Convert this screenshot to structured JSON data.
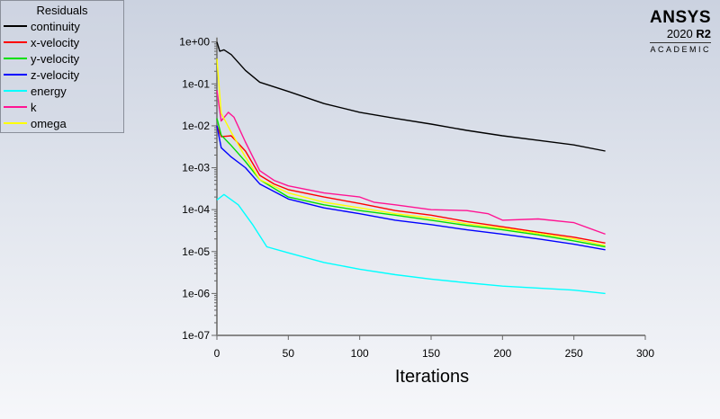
{
  "chart_data": {
    "type": "line",
    "title": "",
    "legend_title": "Residuals",
    "legend_placement": "top-left",
    "xlabel": "Iterations",
    "ylabel": "",
    "xlim": [
      0,
      300
    ],
    "ylim": [
      1e-07,
      1
    ],
    "yscale": "log",
    "xticks": [
      "0",
      "50",
      "100",
      "150",
      "200",
      "250",
      "300"
    ],
    "yticks": [
      "1e+00",
      "1e-01",
      "1e-02",
      "1e-03",
      "1e-04",
      "1e-05",
      "1e-06",
      "1e-07"
    ],
    "grid": false,
    "series": [
      {
        "name": "continuity",
        "color": "#000000",
        "x": [
          0,
          2,
          5,
          10,
          20,
          30,
          50,
          75,
          100,
          125,
          150,
          175,
          200,
          225,
          250,
          272
        ],
        "y": [
          1,
          0.6,
          0.65,
          0.5,
          0.21,
          0.11,
          0.066,
          0.034,
          0.021,
          0.015,
          0.011,
          0.0078,
          0.0058,
          0.0045,
          0.0035,
          0.0025
        ]
      },
      {
        "name": "x-velocity",
        "color": "#ff0000",
        "x": [
          0,
          3,
          10,
          20,
          30,
          40,
          50,
          75,
          100,
          125,
          150,
          175,
          200,
          225,
          250,
          272
        ],
        "y": [
          0.01,
          0.0055,
          0.0058,
          0.0025,
          0.00066,
          0.00041,
          0.0003,
          0.0002,
          0.00014,
          9.5e-05,
          7.4e-05,
          5.2e-05,
          3.9e-05,
          2.9e-05,
          2.2e-05,
          1.6e-05
        ]
      },
      {
        "name": "y-velocity",
        "color": "#00e000",
        "x": [
          0,
          3,
          10,
          20,
          30,
          50,
          75,
          100,
          125,
          150,
          175,
          200,
          225,
          250,
          272
        ],
        "y": [
          0.015,
          0.006,
          0.0034,
          0.0014,
          0.00052,
          0.0002,
          0.00013,
          9.5e-05,
          7.4e-05,
          5.6e-05,
          4.2e-05,
          3.3e-05,
          2.5e-05,
          1.8e-05,
          1.3e-05
        ]
      },
      {
        "name": "z-velocity",
        "color": "#0000ff",
        "x": [
          0,
          3,
          10,
          20,
          30,
          50,
          75,
          100,
          125,
          150,
          175,
          200,
          225,
          250,
          272
        ],
        "y": [
          0.01,
          0.003,
          0.0018,
          0.001,
          0.00041,
          0.00018,
          0.00011,
          8e-05,
          5.6e-05,
          4.4e-05,
          3.3e-05,
          2.6e-05,
          2e-05,
          1.5e-05,
          1.1e-05
        ]
      },
      {
        "name": "energy",
        "color": "#00ffff",
        "x": [
          0,
          5,
          15,
          25,
          35,
          50,
          75,
          100,
          125,
          150,
          175,
          200,
          250,
          272
        ],
        "y": [
          0.00017,
          0.00023,
          0.00013,
          4.4e-05,
          1.3e-05,
          9.3e-06,
          5.5e-06,
          3.8e-06,
          2.8e-06,
          2.2e-06,
          1.8e-06,
          1.5e-06,
          1.2e-06,
          1e-06
        ]
      },
      {
        "name": "k",
        "color": "#ff1493",
        "x": [
          0,
          3,
          8,
          12,
          20,
          30,
          40,
          50,
          75,
          100,
          110,
          125,
          150,
          175,
          190,
          200,
          225,
          250,
          272
        ],
        "y": [
          0.07,
          0.013,
          0.021,
          0.016,
          0.0041,
          0.00085,
          0.0005,
          0.00037,
          0.00025,
          0.0002,
          0.00015,
          0.00013,
          0.0001,
          9.5e-05,
          8e-05,
          5.6e-05,
          6e-05,
          4.9e-05,
          2.6e-05
        ]
      },
      {
        "name": "omega",
        "color": "#ffff00",
        "x": [
          0,
          3,
          10,
          20,
          30,
          50,
          75,
          100,
          125,
          150,
          175,
          200,
          225,
          250,
          272
        ],
        "y": [
          0.4,
          0.02,
          0.007,
          0.0018,
          0.00052,
          0.00025,
          0.00015,
          0.00011,
          8e-05,
          6.3e-05,
          4.6e-05,
          3.6e-05,
          2.7e-05,
          2e-05,
          1.4e-05
        ]
      }
    ]
  },
  "logo": {
    "brand": "ANSYS",
    "version": "2020",
    "release": "R2",
    "edition": "ACADEMIC"
  }
}
